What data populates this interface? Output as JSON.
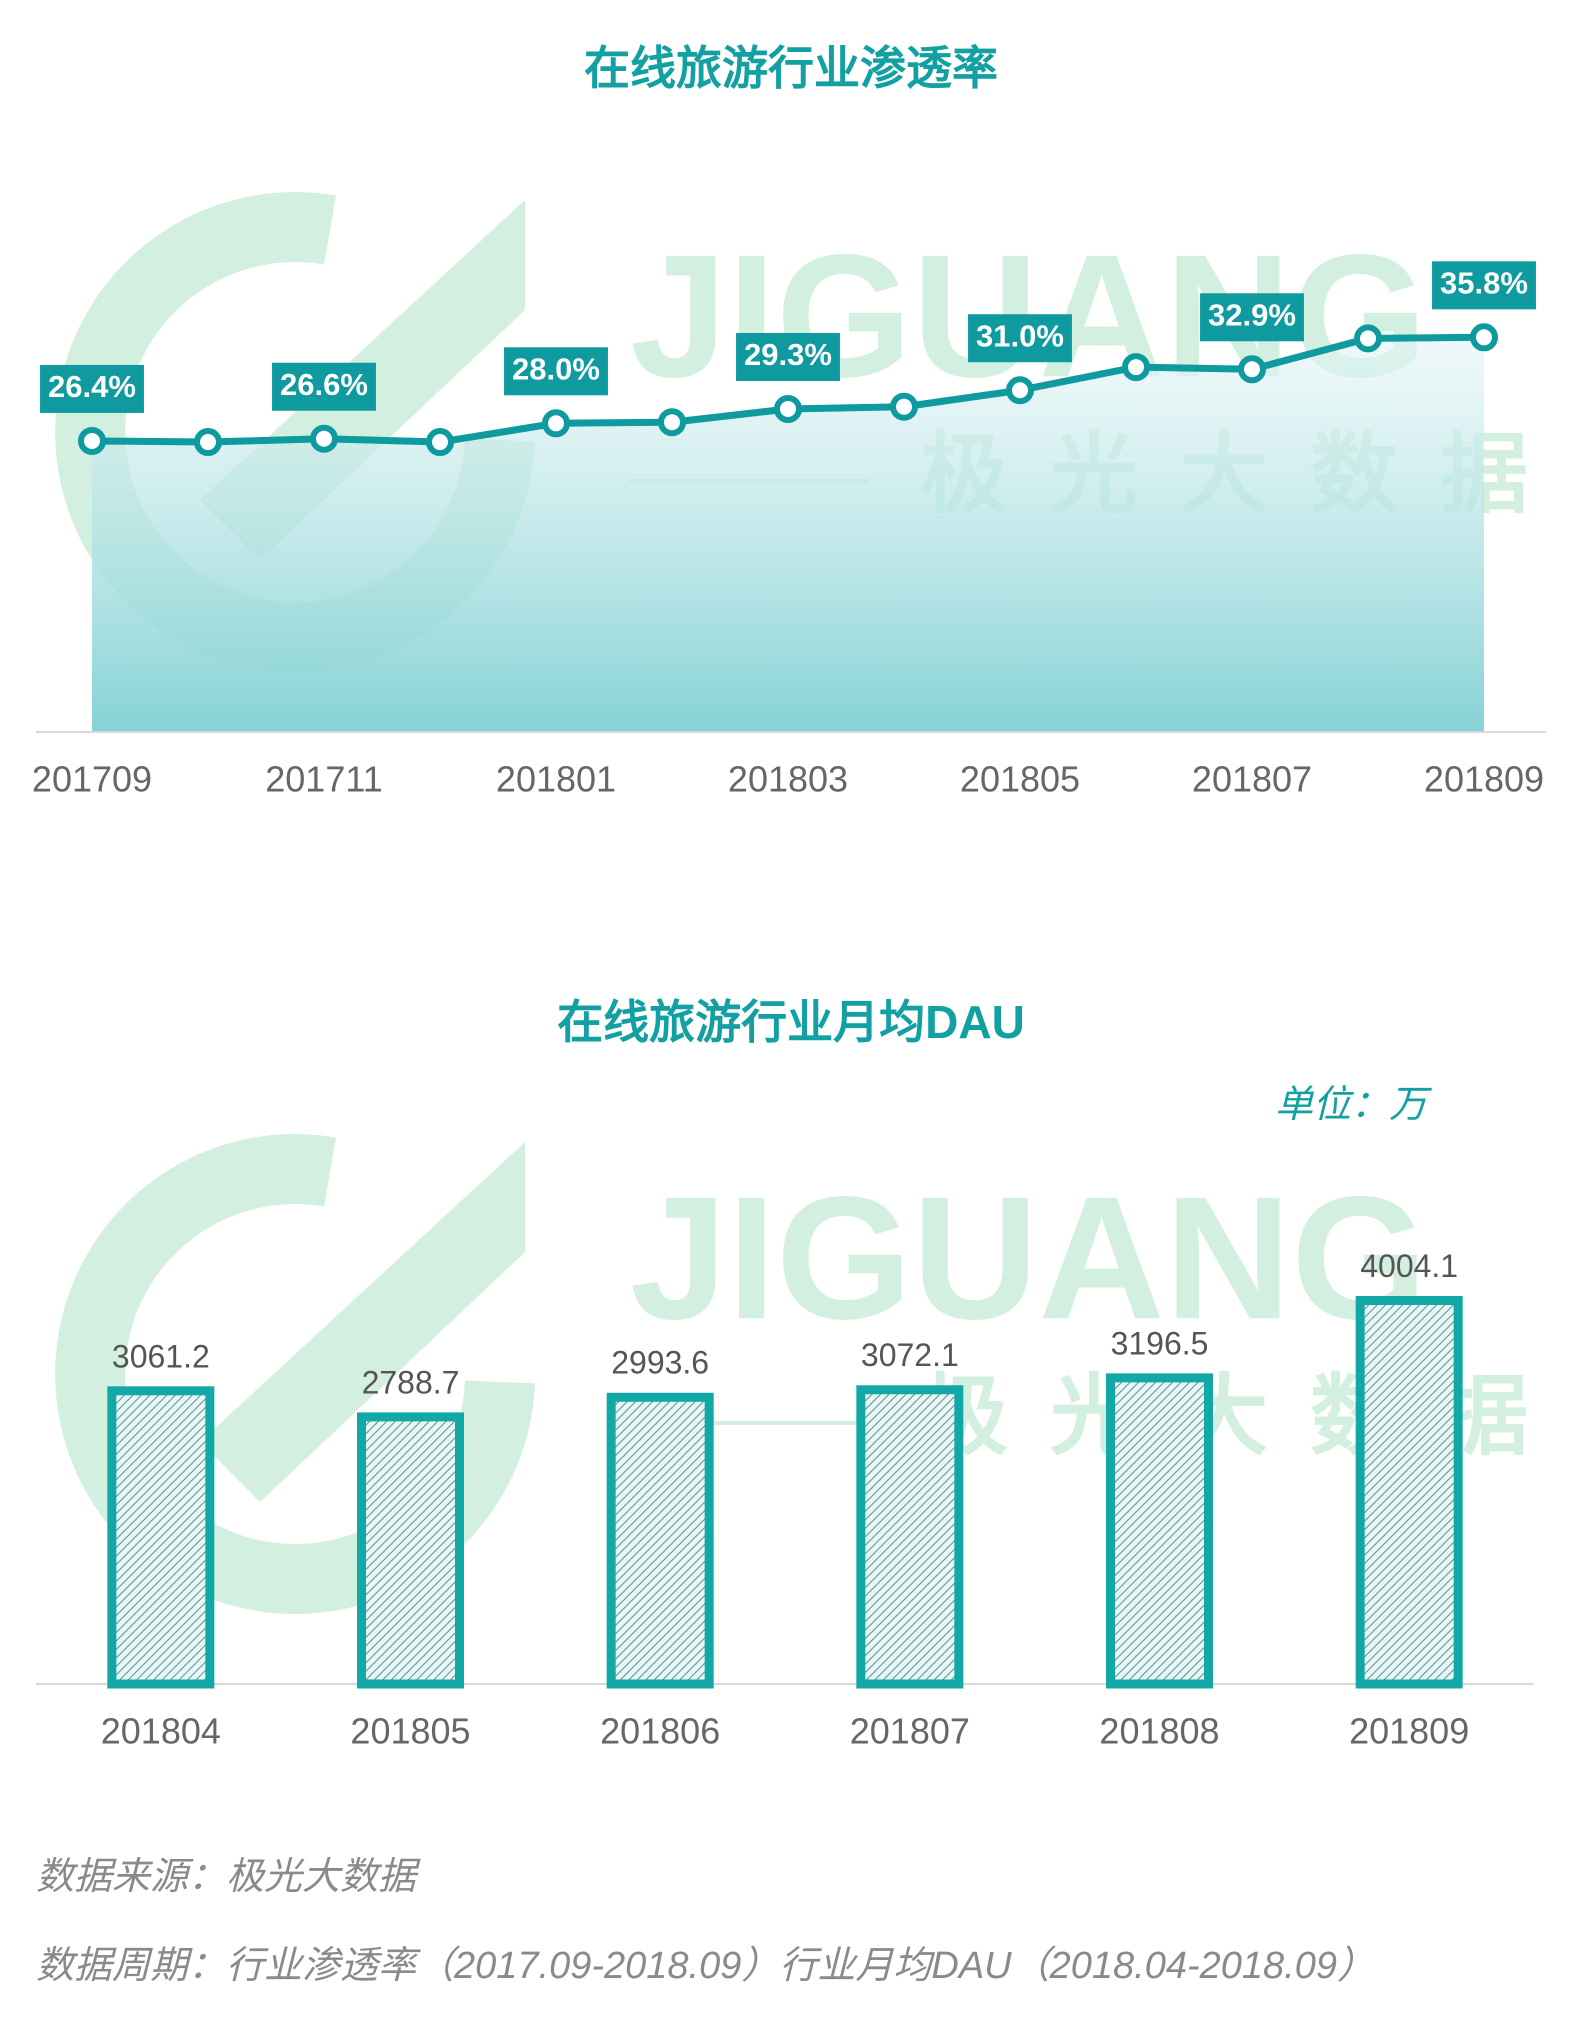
{
  "watermark": {
    "brand": "JIGUANG",
    "name": "极光大数据"
  },
  "chart_data": [
    {
      "type": "line",
      "title": "在线旅游行业渗透率",
      "categories": [
        "201709",
        null,
        "201711",
        null,
        "201801",
        null,
        "201803",
        null,
        "201805",
        null,
        "201807",
        null,
        "201809"
      ],
      "values": [
        26.4,
        26.3,
        26.6,
        26.3,
        28.0,
        28.1,
        29.3,
        29.5,
        31.0,
        33.1,
        32.9,
        35.7,
        35.8
      ],
      "value_labels": [
        "26.4%",
        null,
        "26.6%",
        null,
        "28.0%",
        null,
        "29.3%",
        null,
        "31.0%",
        null,
        "32.9%",
        null,
        "35.8%"
      ],
      "color": "#0e9a9e",
      "ylim": [
        0,
        40
      ]
    },
    {
      "type": "bar",
      "title": "在线旅游行业月均DAU",
      "unit": "单位：万",
      "categories": [
        "201804",
        "201805",
        "201806",
        "201807",
        "201808",
        "201809"
      ],
      "values": [
        3061.2,
        2788.7,
        2993.6,
        3072.1,
        3196.5,
        4004.1
      ],
      "color": "#12a8a8",
      "ylim": [
        0,
        4500
      ]
    }
  ],
  "footer": [
    "数据来源：极光大数据",
    "数据周期：行业渗透率（2017.09-2018.09）行业月均DAU（2018.04-2018.09）"
  ]
}
